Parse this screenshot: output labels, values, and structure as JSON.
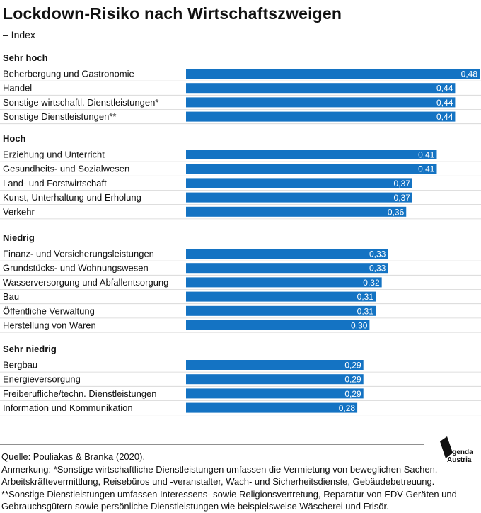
{
  "title": "Lockdown-Risiko nach Wirtschaftszweigen",
  "subtitle": "– Index",
  "chart_data": {
    "type": "bar",
    "orientation": "horizontal",
    "bar_color": "#1473c3",
    "value_label_color": "#ffffff",
    "xlim": [
      0,
      0.48
    ],
    "grid": false,
    "groups": [
      {
        "name": "Sehr hoch",
        "items": [
          {
            "label": "Beherbergung und Gastronomie",
            "value": 0.48,
            "value_label": "0,48"
          },
          {
            "label": "Handel",
            "value": 0.44,
            "value_label": "0,44"
          },
          {
            "label": "Sonstige wirtschaftl. Dienstleistungen*",
            "value": 0.44,
            "value_label": "0,44"
          },
          {
            "label": "Sonstige Dienstleistungen**",
            "value": 0.44,
            "value_label": "0,44"
          }
        ]
      },
      {
        "name": "Hoch",
        "items": [
          {
            "label": "Erziehung und Unterricht",
            "value": 0.41,
            "value_label": "0,41"
          },
          {
            "label": "Gesundheits- und Sozialwesen",
            "value": 0.41,
            "value_label": "0,41"
          },
          {
            "label": "Land- und Forstwirtschaft",
            "value": 0.37,
            "value_label": "0,37"
          },
          {
            "label": "Kunst, Unterhaltung und Erholung",
            "value": 0.37,
            "value_label": "0,37"
          },
          {
            "label": "Verkehr",
            "value": 0.36,
            "value_label": "0,36"
          }
        ]
      },
      {
        "name": "Niedrig",
        "items": [
          {
            "label": "Finanz- und Versicherungsleistungen",
            "value": 0.33,
            "value_label": "0,33"
          },
          {
            "label": "Grundstücks- und Wohnungswesen",
            "value": 0.33,
            "value_label": "0,33"
          },
          {
            "label": "Wasserversorgung und Abfallentsorgung",
            "value": 0.32,
            "value_label": "0,32"
          },
          {
            "label": "Bau",
            "value": 0.31,
            "value_label": "0,31"
          },
          {
            "label": "Öffentliche Verwaltung",
            "value": 0.31,
            "value_label": "0,31"
          },
          {
            "label": "Herstellung von Waren",
            "value": 0.3,
            "value_label": "0,30"
          }
        ]
      },
      {
        "name": "Sehr niedrig",
        "items": [
          {
            "label": "Bergbau",
            "value": 0.29,
            "value_label": "0,29"
          },
          {
            "label": "Energieversorgung",
            "value": 0.29,
            "value_label": "0,29"
          },
          {
            "label": "Freiberufliche/techn. Dienstleistungen",
            "value": 0.29,
            "value_label": "0,29"
          },
          {
            "label": "Information und Kommunikation",
            "value": 0.28,
            "value_label": "0,28"
          }
        ]
      }
    ]
  },
  "footer": {
    "source": "Quelle: Pouliakas & Branka (2020).",
    "note_lines": [
      "Anmerkung: *Sonstige wirtschaftliche Dienstleistungen umfassen die Vermietung von beweglichen Sachen,",
      "Arbeitskräftevermittlung, Reisebüros und -veranstalter, Wach- und Sicherheitsdienste, Gebäudebetreuung.",
      "**Sonstige Dienstleistungen umfassen Interessens- sowie Religionsvertretung, Reparatur von EDV-Geräten und",
      "Gebrauchsgütern sowie persönliche Dienstleistungen wie beispielsweise Wäscherei und Frisör."
    ]
  },
  "logo": {
    "line1": "Agenda",
    "line2": "Austria"
  }
}
